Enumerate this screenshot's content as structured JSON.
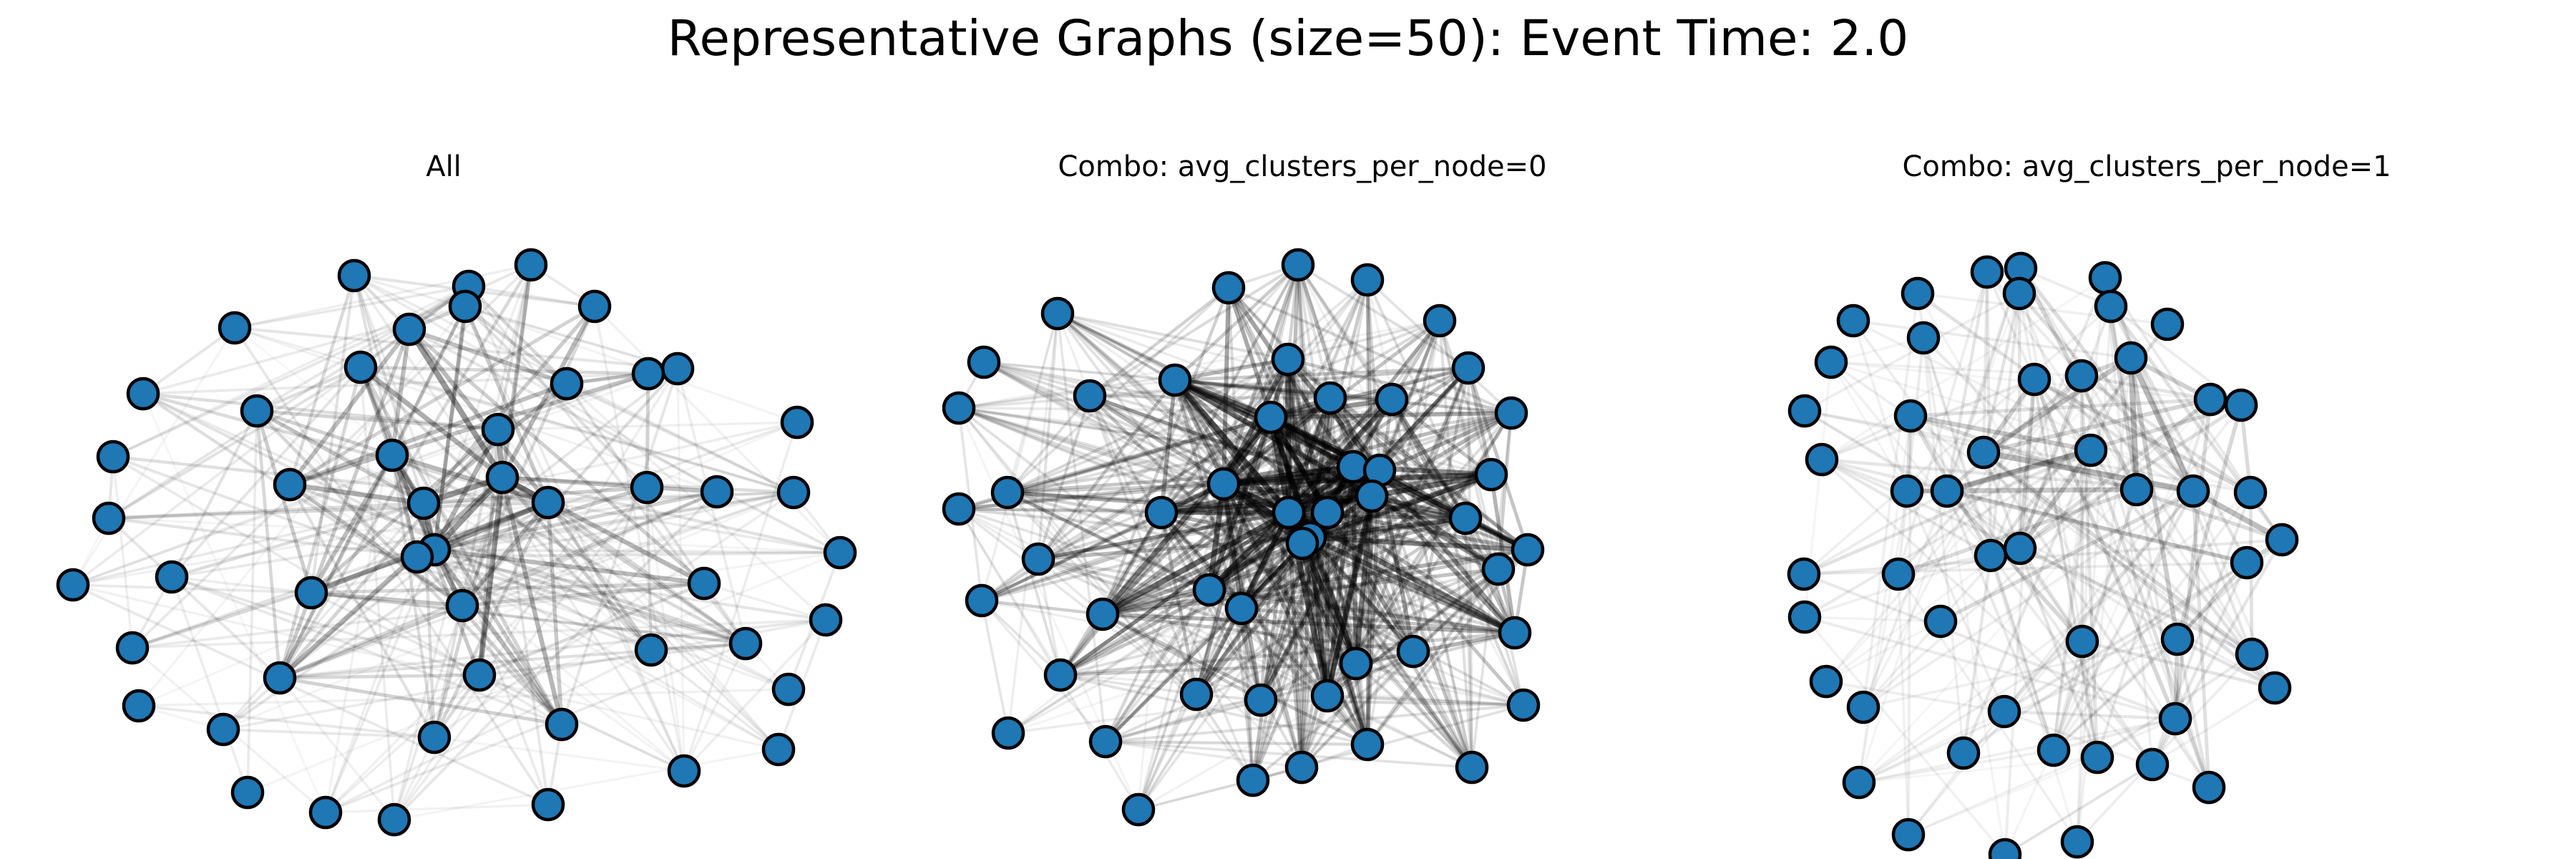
{
  "title": "Representative Graphs (size=50): Event Time: 2.0",
  "colors": {
    "node_fill": "#1f77b4",
    "node_stroke": "#000000",
    "edge": "#000000",
    "background": "#ffffff"
  },
  "panels": [
    {
      "title": "All",
      "node_count": 50,
      "edge_density": 0.34,
      "edge_seed": 11,
      "core_seed": 101
    },
    {
      "title": "Combo: avg_clusters_per_node=0",
      "node_count": 50,
      "edge_density": 0.5,
      "edge_seed": 23,
      "core_seed": 202
    },
    {
      "title": "Combo: avg_clusters_per_node=1",
      "node_count": 50,
      "edge_density": 0.22,
      "edge_seed": 37,
      "core_seed": 303
    }
  ]
}
